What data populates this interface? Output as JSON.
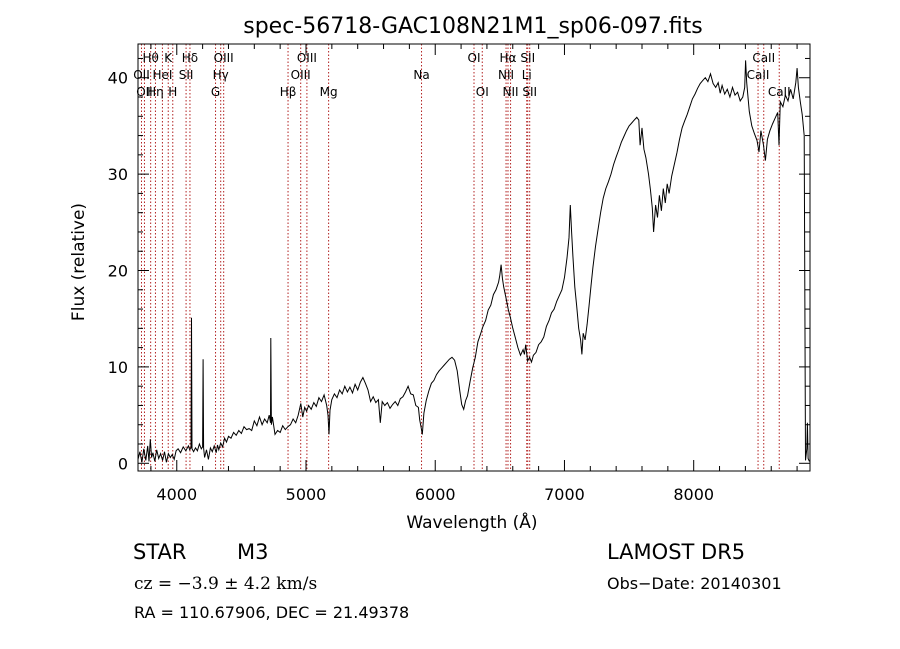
{
  "chart_data": {
    "type": "line",
    "title": "spec-56718-GAC108N21M1_sp06-097.fits",
    "xlabel": "Wavelength (Å)",
    "ylabel": "Flux (relative)",
    "xlim": [
      3700,
      8900
    ],
    "ylim": [
      -0.8,
      43.5
    ],
    "x_ticks": [
      4000,
      5000,
      6000,
      7000,
      8000
    ],
    "y_ticks": [
      0,
      10,
      20,
      30,
      40
    ],
    "grid": false,
    "spectrum": [
      [
        3700,
        0.4
      ],
      [
        3715,
        1.2
      ],
      [
        3730,
        0.1
      ],
      [
        3745,
        1.5
      ],
      [
        3760,
        0.3
      ],
      [
        3775,
        1.8
      ],
      [
        3785,
        0.2
      ],
      [
        3795,
        2.5
      ],
      [
        3805,
        0.6
      ],
      [
        3815,
        1.1
      ],
      [
        3830,
        0.2
      ],
      [
        3845,
        1.4
      ],
      [
        3860,
        0.5
      ],
      [
        3875,
        1.0
      ],
      [
        3890,
        0.3
      ],
      [
        3905,
        1.2
      ],
      [
        3920,
        0.1
      ],
      [
        3935,
        1.0
      ],
      [
        3950,
        0.6
      ],
      [
        3965,
        0.9
      ],
      [
        3980,
        0.4
      ],
      [
        3995,
        1.3
      ],
      [
        4010,
        1.5
      ],
      [
        4030,
        1.1
      ],
      [
        4050,
        1.7
      ],
      [
        4070,
        1.3
      ],
      [
        4090,
        1.8
      ],
      [
        4100,
        1.4
      ],
      [
        4110,
        1.6
      ],
      [
        4114,
        15.1
      ],
      [
        4118,
        1.5
      ],
      [
        4130,
        1.2
      ],
      [
        4145,
        1.6
      ],
      [
        4160,
        1.3
      ],
      [
        4175,
        2.0
      ],
      [
        4190,
        1.5
      ],
      [
        4200,
        1.7
      ],
      [
        4204,
        10.8
      ],
      [
        4208,
        1.6
      ],
      [
        4215,
        0.6
      ],
      [
        4230,
        1.4
      ],
      [
        4245,
        0.4
      ],
      [
        4260,
        1.6
      ],
      [
        4275,
        1.2
      ],
      [
        4290,
        1.8
      ],
      [
        4305,
        1.1
      ],
      [
        4315,
        1.9
      ],
      [
        4325,
        1.4
      ],
      [
        4340,
        2.1
      ],
      [
        4355,
        1.7
      ],
      [
        4370,
        2.6
      ],
      [
        4385,
        2.2
      ],
      [
        4400,
        2.8
      ],
      [
        4420,
        2.6
      ],
      [
        4440,
        3.2
      ],
      [
        4460,
        2.9
      ],
      [
        4480,
        3.4
      ],
      [
        4500,
        3.1
      ],
      [
        4520,
        3.8
      ],
      [
        4540,
        3.5
      ],
      [
        4560,
        3.6
      ],
      [
        4580,
        3.4
      ],
      [
        4600,
        4.4
      ],
      [
        4620,
        3.9
      ],
      [
        4640,
        4.8
      ],
      [
        4660,
        4.0
      ],
      [
        4680,
        4.6
      ],
      [
        4700,
        4.2
      ],
      [
        4715,
        5.0
      ],
      [
        4725,
        4.2
      ],
      [
        4728,
        13.0
      ],
      [
        4732,
        4.0
      ],
      [
        4740,
        4.8
      ],
      [
        4760,
        3.0
      ],
      [
        4780,
        3.4
      ],
      [
        4800,
        3.2
      ],
      [
        4820,
        3.9
      ],
      [
        4840,
        3.5
      ],
      [
        4860,
        3.8
      ],
      [
        4880,
        4.0
      ],
      [
        4900,
        4.6
      ],
      [
        4920,
        4.2
      ],
      [
        4940,
        5.0
      ],
      [
        4960,
        6.2
      ],
      [
        4975,
        4.8
      ],
      [
        4990,
        5.8
      ],
      [
        5005,
        5.4
      ],
      [
        5020,
        6.0
      ],
      [
        5040,
        5.6
      ],
      [
        5060,
        6.3
      ],
      [
        5080,
        5.9
      ],
      [
        5100,
        6.8
      ],
      [
        5120,
        6.4
      ],
      [
        5140,
        7.1
      ],
      [
        5160,
        6.0
      ],
      [
        5170,
        5.0
      ],
      [
        5178,
        3.0
      ],
      [
        5186,
        5.5
      ],
      [
        5200,
        6.6
      ],
      [
        5220,
        7.2
      ],
      [
        5240,
        6.8
      ],
      [
        5260,
        7.6
      ],
      [
        5280,
        7.2
      ],
      [
        5300,
        8.0
      ],
      [
        5320,
        7.4
      ],
      [
        5340,
        7.9
      ],
      [
        5360,
        7.3
      ],
      [
        5380,
        8.2
      ],
      [
        5400,
        7.6
      ],
      [
        5420,
        8.4
      ],
      [
        5440,
        8.9
      ],
      [
        5460,
        8.3
      ],
      [
        5480,
        7.6
      ],
      [
        5500,
        6.4
      ],
      [
        5520,
        6.9
      ],
      [
        5540,
        6.3
      ],
      [
        5560,
        6.6
      ],
      [
        5575,
        4.2
      ],
      [
        5590,
        6.4
      ],
      [
        5610,
        6.0
      ],
      [
        5630,
        6.3
      ],
      [
        5650,
        5.7
      ],
      [
        5670,
        6.1
      ],
      [
        5690,
        6.4
      ],
      [
        5710,
        6.0
      ],
      [
        5730,
        6.7
      ],
      [
        5750,
        6.9
      ],
      [
        5770,
        7.4
      ],
      [
        5790,
        8.0
      ],
      [
        5810,
        7.2
      ],
      [
        5830,
        7.1
      ],
      [
        5850,
        6.0
      ],
      [
        5870,
        5.8
      ],
      [
        5880,
        4.5
      ],
      [
        5890,
        3.8
      ],
      [
        5900,
        3.0
      ],
      [
        5912,
        5.2
      ],
      [
        5930,
        6.5
      ],
      [
        5950,
        7.5
      ],
      [
        5970,
        8.3
      ],
      [
        5990,
        8.6
      ],
      [
        6010,
        9.2
      ],
      [
        6030,
        9.6
      ],
      [
        6050,
        9.9
      ],
      [
        6070,
        10.2
      ],
      [
        6090,
        10.5
      ],
      [
        6110,
        10.8
      ],
      [
        6130,
        11.0
      ],
      [
        6150,
        10.7
      ],
      [
        6170,
        9.6
      ],
      [
        6190,
        7.5
      ],
      [
        6205,
        6.1
      ],
      [
        6220,
        5.6
      ],
      [
        6235,
        6.5
      ],
      [
        6250,
        7.0
      ],
      [
        6270,
        8.5
      ],
      [
        6290,
        9.9
      ],
      [
        6310,
        11.0
      ],
      [
        6330,
        12.6
      ],
      [
        6350,
        13.4
      ],
      [
        6370,
        14.2
      ],
      [
        6390,
        14.8
      ],
      [
        6410,
        15.9
      ],
      [
        6430,
        16.4
      ],
      [
        6450,
        17.5
      ],
      [
        6470,
        18.0
      ],
      [
        6490,
        18.8
      ],
      [
        6500,
        19.5
      ],
      [
        6510,
        20.6
      ],
      [
        6520,
        19.2
      ],
      [
        6530,
        18.3
      ],
      [
        6550,
        17.0
      ],
      [
        6565,
        16.0
      ],
      [
        6580,
        15.2
      ],
      [
        6600,
        14.0
      ],
      [
        6620,
        13.0
      ],
      [
        6640,
        12.0
      ],
      [
        6660,
        11.2
      ],
      [
        6680,
        11.8
      ],
      [
        6690,
        11.3
      ],
      [
        6700,
        12.3
      ],
      [
        6715,
        10.6
      ],
      [
        6730,
        11.0
      ],
      [
        6745,
        10.5
      ],
      [
        6760,
        11.2
      ],
      [
        6780,
        11.5
      ],
      [
        6800,
        12.3
      ],
      [
        6820,
        12.6
      ],
      [
        6840,
        13.1
      ],
      [
        6860,
        14.2
      ],
      [
        6880,
        14.8
      ],
      [
        6900,
        15.6
      ],
      [
        6920,
        16.0
      ],
      [
        6940,
        16.8
      ],
      [
        6960,
        17.4
      ],
      [
        6980,
        18.0
      ],
      [
        7000,
        19.3
      ],
      [
        7020,
        21.3
      ],
      [
        7035,
        23.4
      ],
      [
        7045,
        26.8
      ],
      [
        7055,
        24.0
      ],
      [
        7065,
        21.5
      ],
      [
        7080,
        18.3
      ],
      [
        7095,
        16.3
      ],
      [
        7110,
        14.0
      ],
      [
        7125,
        12.8
      ],
      [
        7135,
        11.3
      ],
      [
        7145,
        13.5
      ],
      [
        7160,
        12.8
      ],
      [
        7175,
        14.4
      ],
      [
        7190,
        16.3
      ],
      [
        7205,
        18.4
      ],
      [
        7220,
        20.3
      ],
      [
        7240,
        22.5
      ],
      [
        7260,
        24.3
      ],
      [
        7280,
        26.0
      ],
      [
        7300,
        27.5
      ],
      [
        7320,
        28.5
      ],
      [
        7340,
        29.2
      ],
      [
        7360,
        30.0
      ],
      [
        7380,
        31.0
      ],
      [
        7400,
        31.8
      ],
      [
        7420,
        32.5
      ],
      [
        7440,
        33.3
      ],
      [
        7460,
        33.9
      ],
      [
        7480,
        34.5
      ],
      [
        7500,
        35.0
      ],
      [
        7520,
        35.3
      ],
      [
        7540,
        35.6
      ],
      [
        7560,
        35.9
      ],
      [
        7575,
        35.6
      ],
      [
        7585,
        33.0
      ],
      [
        7600,
        34.8
      ],
      [
        7615,
        32.6
      ],
      [
        7630,
        31.7
      ],
      [
        7650,
        30.0
      ],
      [
        7665,
        28.4
      ],
      [
        7680,
        26.5
      ],
      [
        7690,
        24.0
      ],
      [
        7705,
        26.8
      ],
      [
        7720,
        25.5
      ],
      [
        7735,
        27.8
      ],
      [
        7750,
        26.2
      ],
      [
        7765,
        28.5
      ],
      [
        7780,
        27.0
      ],
      [
        7795,
        29.0
      ],
      [
        7810,
        28.0
      ],
      [
        7830,
        29.8
      ],
      [
        7850,
        31.0
      ],
      [
        7870,
        32.2
      ],
      [
        7890,
        33.6
      ],
      [
        7910,
        34.8
      ],
      [
        7930,
        35.5
      ],
      [
        7950,
        36.2
      ],
      [
        7970,
        37.0
      ],
      [
        7990,
        37.8
      ],
      [
        8010,
        38.3
      ],
      [
        8030,
        38.9
      ],
      [
        8050,
        39.4
      ],
      [
        8070,
        39.7
      ],
      [
        8090,
        40.0
      ],
      [
        8110,
        39.6
      ],
      [
        8130,
        40.4
      ],
      [
        8150,
        39.4
      ],
      [
        8170,
        39.0
      ],
      [
        8190,
        39.5
      ],
      [
        8205,
        38.4
      ],
      [
        8220,
        39.2
      ],
      [
        8240,
        38.3
      ],
      [
        8260,
        38.8
      ],
      [
        8280,
        38.0
      ],
      [
        8300,
        39.0
      ],
      [
        8320,
        38.2
      ],
      [
        8340,
        38.5
      ],
      [
        8360,
        37.6
      ],
      [
        8380,
        38.0
      ],
      [
        8395,
        39.0
      ],
      [
        8402,
        41.8
      ],
      [
        8410,
        39.5
      ],
      [
        8430,
        36.5
      ],
      [
        8450,
        35.0
      ],
      [
        8470,
        34.2
      ],
      [
        8490,
        33.5
      ],
      [
        8505,
        32.3
      ],
      [
        8520,
        34.5
      ],
      [
        8540,
        33.0
      ],
      [
        8555,
        31.4
      ],
      [
        8570,
        33.6
      ],
      [
        8590,
        34.5
      ],
      [
        8610,
        35.2
      ],
      [
        8630,
        35.8
      ],
      [
        8650,
        36.4
      ],
      [
        8660,
        33.0
      ],
      [
        8670,
        37.5
      ],
      [
        8690,
        37.0
      ],
      [
        8710,
        38.2
      ],
      [
        8730,
        37.6
      ],
      [
        8750,
        38.8
      ],
      [
        8770,
        37.8
      ],
      [
        8790,
        39.5
      ],
      [
        8800,
        41.0
      ],
      [
        8810,
        39.0
      ],
      [
        8825,
        37.5
      ],
      [
        8840,
        36.2
      ],
      [
        8855,
        34.0
      ],
      [
        8865,
        0.3
      ],
      [
        8875,
        1.5
      ],
      [
        8880,
        4.2
      ],
      [
        8885,
        0.5
      ],
      [
        8895,
        0.2
      ]
    ],
    "lines": [
      {
        "w": 3727,
        "label": "OII",
        "row": 1
      },
      {
        "w": 3750,
        "label": "OII",
        "row": 2
      },
      {
        "w": 3798,
        "label": "Hθ",
        "row": 0
      },
      {
        "w": 3835,
        "label": "Hη",
        "row": 2
      },
      {
        "w": 3889,
        "label": "HeI",
        "row": 1
      },
      {
        "w": 3934,
        "label": "K",
        "row": 0
      },
      {
        "w": 3969,
        "label": "H",
        "row": 2
      },
      {
        "w": 4072,
        "label": "SII",
        "row": 1
      },
      {
        "w": 4102,
        "label": "Hδ",
        "row": 0
      },
      {
        "w": 4300,
        "label": "G",
        "row": 2
      },
      {
        "w": 4340,
        "label": "Hγ",
        "row": 1
      },
      {
        "w": 4363,
        "label": "OIII",
        "row": 0
      },
      {
        "w": 4861,
        "label": "Hβ",
        "row": 2
      },
      {
        "w": 4959,
        "label": "OIII",
        "row": 1
      },
      {
        "w": 5007,
        "label": "OIII",
        "row": 0
      },
      {
        "w": 5175,
        "label": "Mg",
        "row": 2
      },
      {
        "w": 5894,
        "label": "Na",
        "row": 1
      },
      {
        "w": 6300,
        "label": "OI",
        "row": 0
      },
      {
        "w": 6364,
        "label": "OI",
        "row": 2
      },
      {
        "w": 6548,
        "label": "NII",
        "row": 1
      },
      {
        "w": 6563,
        "label": "Hα",
        "row": 0
      },
      {
        "w": 6583,
        "label": "NII",
        "row": 2
      },
      {
        "w": 6708,
        "label": "Li",
        "row": 1
      },
      {
        "w": 6716,
        "label": "SII",
        "row": 0
      },
      {
        "w": 6731,
        "label": "SII",
        "row": 2
      },
      {
        "w": 8498,
        "label": "CaII",
        "row": 1
      },
      {
        "w": 8542,
        "label": "CaII",
        "row": 0
      },
      {
        "w": 8662,
        "label": "CaII",
        "row": 2
      }
    ]
  },
  "colors": {
    "spectrum": "#000000",
    "lines": "#b22222",
    "axes": "#000000"
  },
  "info": {
    "class": "STAR",
    "subclass": "M3",
    "survey": "LAMOST DR5",
    "cz": "cz = −3.9 ± 4.2 km/s",
    "obs_date": "Obs−Date: 20140301",
    "coords": "RA = 110.67906, DEC =  21.49378"
  }
}
